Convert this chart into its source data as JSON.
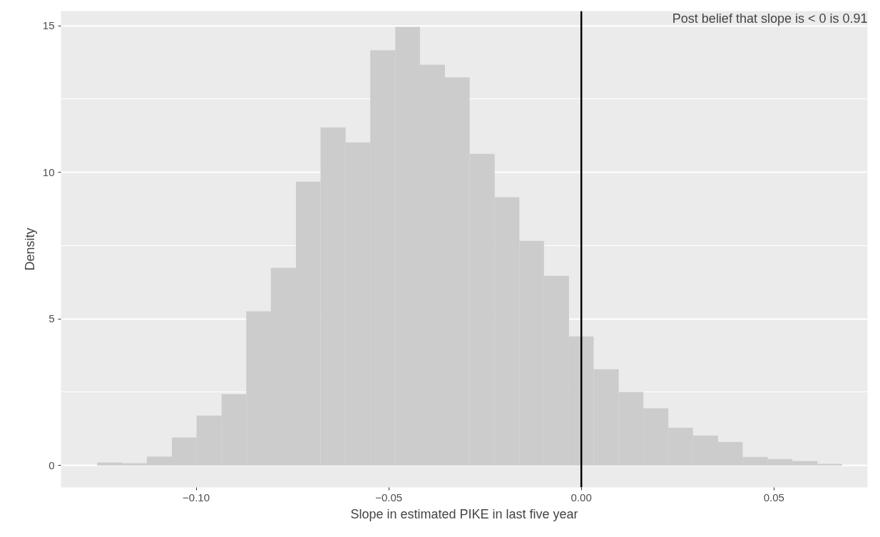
{
  "chart_data": {
    "type": "histogram",
    "xlabel": "Slope in estimated PIKE in last five year",
    "ylabel": "Density",
    "bins": [
      -0.1257,
      -0.1192,
      -0.1128,
      -0.1063,
      -0.0999,
      -0.0934,
      -0.087,
      -0.0806,
      -0.0741,
      -0.0677,
      -0.0612,
      -0.0548,
      -0.0483,
      -0.0419,
      -0.0354,
      -0.029,
      -0.0225,
      -0.0161,
      -0.0097,
      -0.0032,
      0.0032,
      0.0097,
      0.0161,
      0.0226,
      0.029,
      0.0355,
      0.0419,
      0.0484,
      0.0548,
      0.0613,
      0.0677
    ],
    "values": [
      0.1,
      0.08,
      0.3,
      0.95,
      1.7,
      2.43,
      5.26,
      6.74,
      9.68,
      11.53,
      11.02,
      14.16,
      14.96,
      13.67,
      13.24,
      10.63,
      9.15,
      7.66,
      6.47,
      4.4,
      3.28,
      2.51,
      1.95,
      1.29,
      1.02,
      0.8,
      0.29,
      0.22,
      0.15,
      0.05
    ],
    "color": "#cccccc",
    "xlim": [
      -0.1351,
      0.0743
    ],
    "ylim": [
      -0.75,
      15.5
    ],
    "xticks": [
      {
        "value": -0.1,
        "label": "−0.10"
      },
      {
        "value": -0.05,
        "label": "−0.05"
      },
      {
        "value": 0,
        "label": "0.00"
      },
      {
        "value": 0.05,
        "label": "0.05"
      }
    ],
    "yticks": [
      0,
      5,
      10,
      15
    ],
    "grid": true,
    "ref_lines": [
      {
        "axis": "x",
        "value": 0,
        "color": "#000000"
      }
    ],
    "annotations": [
      "Post belief that slope is < 0 is 0.91"
    ]
  }
}
